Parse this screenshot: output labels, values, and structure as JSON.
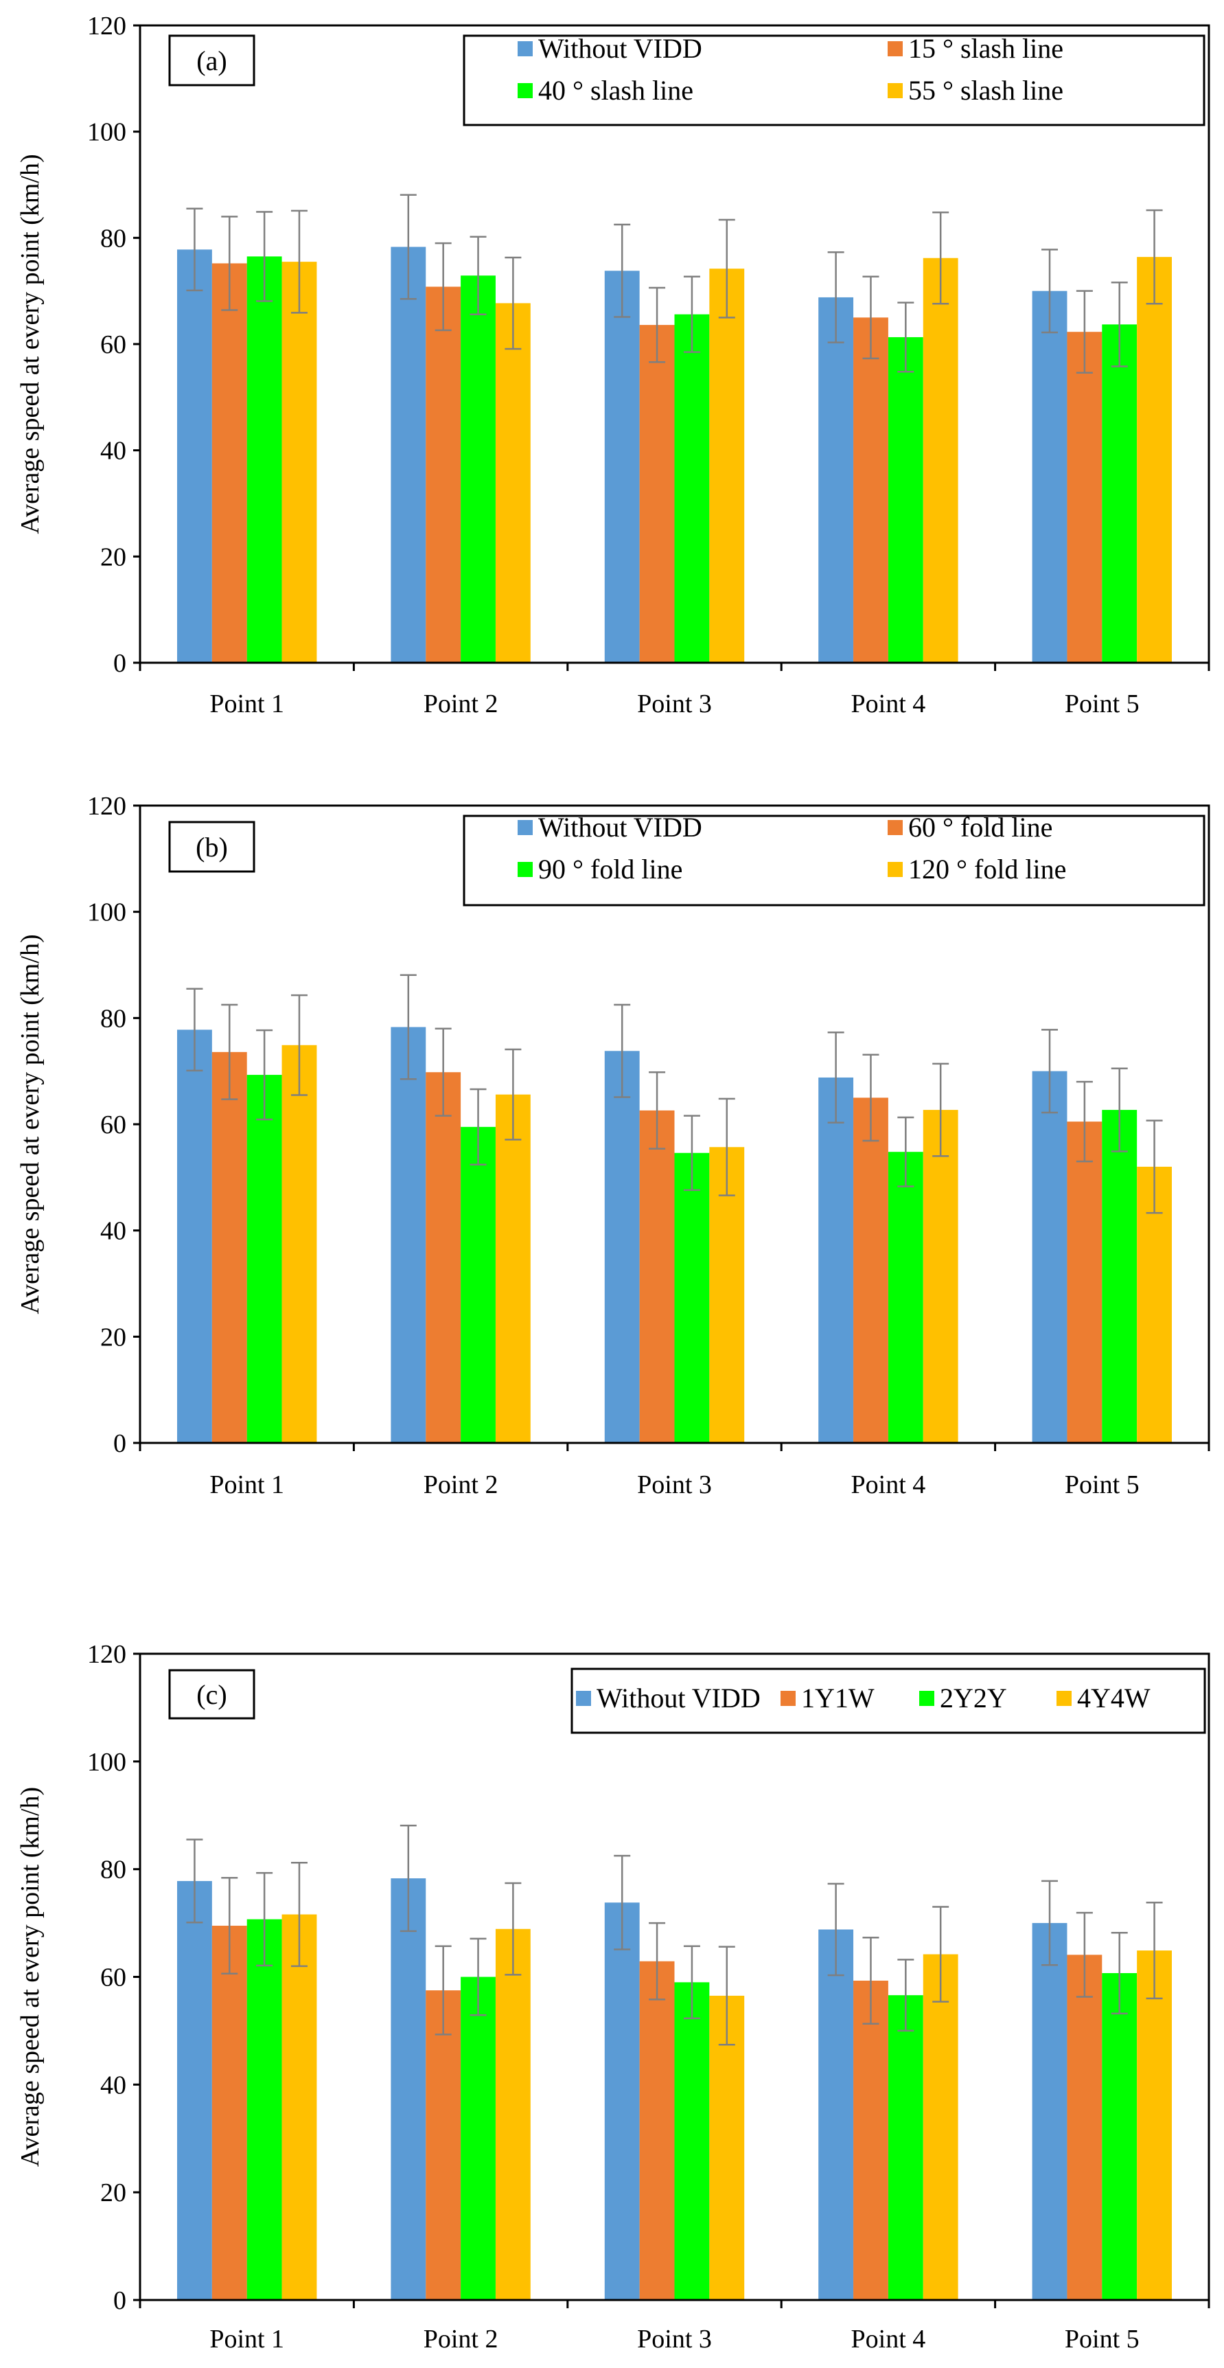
{
  "colors": {
    "series": [
      "#5b9bd5",
      "#ed7d31",
      "#00ff00",
      "#ffc000"
    ],
    "axis": "#000000",
    "error_bar": "#7f7f7f"
  },
  "chart_data": [
    {
      "type": "bar",
      "panel_label": "(a)",
      "ylabel": "Average speed at every point (km/h)",
      "xlabel": "",
      "ylim": [
        0,
        120
      ],
      "yticks": [
        0,
        20,
        40,
        60,
        80,
        100,
        120
      ],
      "grid": false,
      "legend_position": "top-right",
      "legend_columns": 2,
      "categories": [
        "Point 1",
        "Point 2",
        "Point 3",
        "Point 4",
        "Point 5"
      ],
      "series": [
        {
          "name": "Without VIDD",
          "values": [
            77.8,
            78.3,
            73.8,
            68.8,
            70.0
          ],
          "errors": [
            7.7,
            9.8,
            8.7,
            8.5,
            7.8
          ]
        },
        {
          "name": "15 ° slash line",
          "values": [
            75.2,
            70.8,
            63.6,
            65.0,
            62.3
          ],
          "errors": [
            8.8,
            8.2,
            7.0,
            7.7,
            7.7
          ]
        },
        {
          "name": "40 ° slash line",
          "values": [
            76.5,
            72.9,
            65.6,
            61.3,
            63.7
          ],
          "errors": [
            8.4,
            7.3,
            7.1,
            6.5,
            7.9
          ]
        },
        {
          "name": "55 ° slash line",
          "values": [
            75.5,
            67.7,
            74.2,
            76.2,
            76.4
          ],
          "errors": [
            9.6,
            8.6,
            9.2,
            8.6,
            8.8
          ]
        }
      ]
    },
    {
      "type": "bar",
      "panel_label": "(b)",
      "ylabel": "Average speed at every point (km/h)",
      "xlabel": "",
      "ylim": [
        0,
        120
      ],
      "yticks": [
        0,
        20,
        40,
        60,
        80,
        100,
        120
      ],
      "grid": false,
      "legend_position": "top-right",
      "legend_columns": 2,
      "categories": [
        "Point 1",
        "Point 2",
        "Point 3",
        "Point 4",
        "Point 5"
      ],
      "series": [
        {
          "name": "Without VIDD",
          "values": [
            77.8,
            78.3,
            73.8,
            68.8,
            70.0
          ],
          "errors": [
            7.7,
            9.8,
            8.7,
            8.5,
            7.8
          ]
        },
        {
          "name": "60 ° fold line",
          "values": [
            73.6,
            69.8,
            62.6,
            65.0,
            60.5
          ],
          "errors": [
            8.9,
            8.2,
            7.2,
            8.1,
            7.5
          ]
        },
        {
          "name": "90 ° fold line",
          "values": [
            69.3,
            59.5,
            54.6,
            54.8,
            62.7
          ],
          "errors": [
            8.4,
            7.1,
            7.0,
            6.5,
            7.8
          ]
        },
        {
          "name": "120 ° fold line",
          "values": [
            74.9,
            65.6,
            55.7,
            62.7,
            52.0
          ],
          "errors": [
            9.4,
            8.5,
            9.1,
            8.7,
            8.7
          ]
        }
      ]
    },
    {
      "type": "bar",
      "panel_label": "(c)",
      "ylabel": "Average speed at every point (km/h)",
      "xlabel": "",
      "ylim": [
        0,
        120
      ],
      "yticks": [
        0,
        20,
        40,
        60,
        80,
        100,
        120
      ],
      "grid": false,
      "legend_position": "top-right",
      "legend_columns": 4,
      "categories": [
        "Point 1",
        "Point 2",
        "Point 3",
        "Point 4",
        "Point 5"
      ],
      "series": [
        {
          "name": "Without VIDD",
          "values": [
            77.8,
            78.3,
            73.8,
            68.8,
            70.0
          ],
          "errors": [
            7.7,
            9.8,
            8.7,
            8.5,
            7.8
          ]
        },
        {
          "name": "1Y1W",
          "values": [
            69.5,
            57.5,
            62.9,
            59.3,
            64.1
          ],
          "errors": [
            8.9,
            8.2,
            7.1,
            8.0,
            7.8
          ]
        },
        {
          "name": "2Y2Y",
          "values": [
            70.7,
            60.0,
            59.0,
            56.6,
            60.7
          ],
          "errors": [
            8.6,
            7.1,
            6.7,
            6.6,
            7.5
          ]
        },
        {
          "name": "4Y4W",
          "values": [
            71.6,
            68.9,
            56.5,
            64.2,
            64.9
          ],
          "errors": [
            9.6,
            8.5,
            9.1,
            8.8,
            8.9
          ]
        }
      ]
    }
  ]
}
